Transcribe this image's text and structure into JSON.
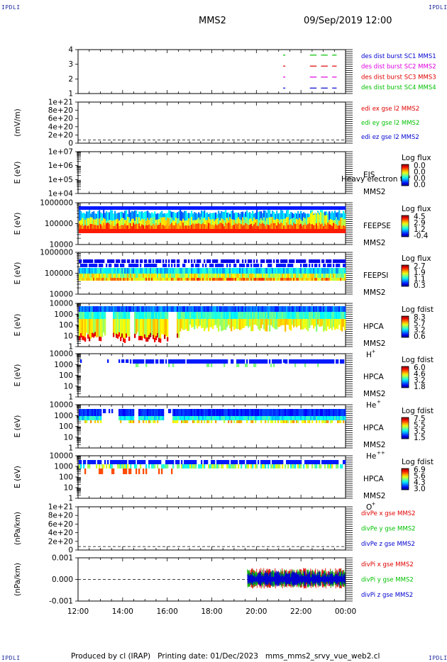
{
  "corner_label": "IPDLI",
  "header": {
    "spacecraft": "MMS2",
    "datetime": "09/Sep/2019 12:00"
  },
  "footer": {
    "text": "Produced by cl (IRAP)   Printing date: 01/Dec/2023   mms_mms2_srvy_vue_web2.cl"
  },
  "colors": {
    "red": "#e00000",
    "green": "#00c000",
    "blue": "#0000d0",
    "magenta": "#e000e0"
  },
  "chart_data": [
    {
      "type": "line",
      "title": "",
      "yticks": [
        "4",
        "3",
        "2",
        "1"
      ],
      "ylim": [
        0.5,
        4.5
      ],
      "legend": [
        {
          "text": "des dist burst SC1 MMS1",
          "color": "#0000d0"
        },
        {
          "text": "des dist burst SC2 MMS2",
          "color": "#e000e0"
        },
        {
          "text": "des dist burst SC3 MMS3",
          "color": "#e00000"
        },
        {
          "text": "des dist burst SC4 MMS4",
          "color": "#00c000"
        }
      ],
      "series": [
        {
          "color": "#00c000",
          "level": 4,
          "segments": [
            [
              21.2,
              21.3
            ],
            [
              22.4,
              22.7
            ],
            [
              22.9,
              23.2
            ],
            [
              23.4,
              23.6
            ]
          ]
        },
        {
          "color": "#e000e0",
          "level": 2,
          "segments": [
            [
              21.2,
              21.3
            ],
            [
              22.4,
              22.7
            ],
            [
              22.9,
              23.2
            ],
            [
              23.4,
              23.6
            ]
          ]
        },
        {
          "color": "#e00000",
          "level": 3,
          "segments": [
            [
              21.2,
              21.3
            ],
            [
              22.4,
              22.7
            ],
            [
              22.9,
              23.2
            ],
            [
              23.4,
              23.6
            ]
          ]
        },
        {
          "color": "#0000d0",
          "level": 1,
          "segments": [
            [
              21.2,
              21.3
            ],
            [
              22.4,
              22.7
            ],
            [
              22.9,
              23.2
            ],
            [
              23.4,
              23.6
            ]
          ]
        }
      ]
    },
    {
      "type": "line",
      "ylabel": "(mV/m)",
      "yticks": [
        "1e+21",
        "8e+20",
        "6e+20",
        "4e+20",
        "2e+20",
        "0"
      ],
      "legend": [
        {
          "text": "edi ex gse l2 MMS2",
          "color": "#e00000"
        },
        {
          "text": "edi ey gse l2 MMS2",
          "color": "#00c000"
        },
        {
          "text": "edi ez gse l2 MMS2",
          "color": "#0000d0"
        }
      ]
    },
    {
      "type": "heatmap",
      "ylabel": "E (eV)",
      "yticks": [
        "1e+07",
        "1e+06",
        "1e+05",
        "1e+04"
      ],
      "instrument": "EIS",
      "subtitle": "Heavy electron tof",
      "spacecraft": "MMS2",
      "colorbar": {
        "title": "Log flux",
        "labels": [
          "0.0",
          "0.0",
          "0.0",
          "0.0"
        ]
      }
    },
    {
      "type": "heatmap",
      "ylabel": "E (eV)",
      "yticks": [
        "1000000",
        "100000",
        "10000"
      ],
      "instrument": "FEEPSE",
      "spacecraft": "MMS2",
      "colorbar": {
        "title": "Log flux",
        "labels": [
          "4.5",
          "2.9",
          "1.2",
          "-0.4"
        ]
      }
    },
    {
      "type": "heatmap",
      "ylabel": "E (eV)",
      "yticks": [
        "1000000",
        "100000",
        "10000"
      ],
      "instrument": "FEEPSI",
      "spacecraft": "MMS2",
      "colorbar": {
        "title": "Log flux",
        "labels": [
          "2.7",
          "1.9",
          "1.1",
          "0.3"
        ]
      }
    },
    {
      "type": "heatmap",
      "ylabel": "E (eV)",
      "yticks": [
        "10000",
        "1000",
        "100",
        "10",
        "1"
      ],
      "instrument": "HPCA",
      "spacecraft": "MMS2",
      "species": "H",
      "charge": "+",
      "colorbar": {
        "title": "Log fdist",
        "labels": [
          "8.3",
          "5.7",
          "3.2",
          "0.6"
        ]
      }
    },
    {
      "type": "heatmap",
      "ylabel": "E (eV)",
      "yticks": [
        "10000",
        "1000",
        "100",
        "10",
        "1"
      ],
      "instrument": "HPCA",
      "spacecraft": "MMS2",
      "species": "He",
      "charge": "+",
      "colorbar": {
        "title": "Log fdist",
        "labels": [
          "6.0",
          "4.6",
          "3.2",
          "1.8"
        ]
      }
    },
    {
      "type": "heatmap",
      "ylabel": "E (eV)",
      "yticks": [
        "10000",
        "1000",
        "100",
        "10",
        "1"
      ],
      "instrument": "HPCA",
      "spacecraft": "MMS2",
      "species": "He",
      "charge": "++",
      "colorbar": {
        "title": "Log fdist",
        "labels": [
          "7.5",
          "5.5",
          "3.5",
          "1.5"
        ]
      }
    },
    {
      "type": "heatmap",
      "ylabel": "E (eV)",
      "yticks": [
        "10000",
        "1000",
        "100",
        "10",
        "1"
      ],
      "instrument": "HPCA",
      "spacecraft": "MMS2",
      "species": "O",
      "charge": "+",
      "colorbar": {
        "title": "Log fdist",
        "labels": [
          "6.9",
          "5.6",
          "4.3",
          "3.0"
        ]
      }
    },
    {
      "type": "line",
      "ylabel": "(nPa/km)",
      "yticks": [
        "1e+21",
        "8e+20",
        "6e+20",
        "4e+20",
        "2e+20",
        "0"
      ],
      "legend": [
        {
          "text": "divPe x gse MMS2",
          "color": "#e00000"
        },
        {
          "text": "divPe y gse MMS2",
          "color": "#00c000"
        },
        {
          "text": "divPe z gse MMS2",
          "color": "#0000d0"
        }
      ]
    },
    {
      "type": "line",
      "ylabel": "(nPa/km)",
      "yticks": [
        "0.001",
        "0.000",
        "-0.001"
      ],
      "ylim": [
        -0.0015,
        0.0015
      ],
      "legend": [
        {
          "text": "divPi x gse MMS2",
          "color": "#e00000"
        },
        {
          "text": "divPi y gse MMS2",
          "color": "#00c000"
        },
        {
          "text": "divPi z gse MMS2",
          "color": "#0000d0"
        }
      ],
      "data_start_hour": 19.6
    }
  ],
  "xaxis": {
    "ticks": [
      "12:00",
      "14:00",
      "16:00",
      "18:00",
      "20:00",
      "22:00",
      "00:00"
    ],
    "range_hours": [
      12,
      24
    ]
  }
}
